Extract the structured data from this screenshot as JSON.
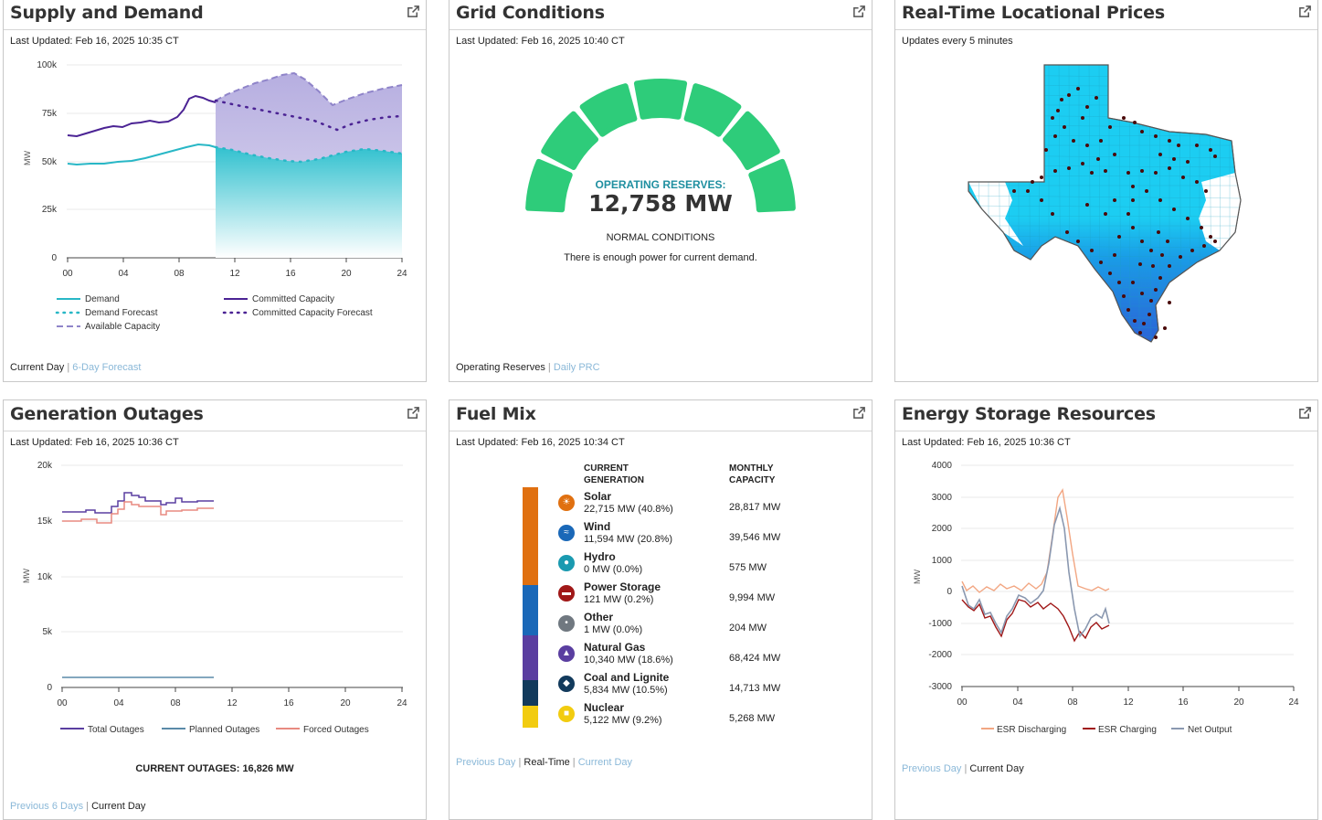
{
  "supply": {
    "title": "Supply and Demand",
    "updated": "Last Updated: Feb 16, 2025 10:35 CT",
    "y_label": "MW",
    "y_ticks": [
      "100k",
      "75k",
      "50k",
      "25k",
      "0"
    ],
    "x_ticks": [
      "00",
      "04",
      "08",
      "12",
      "16",
      "20",
      "24"
    ],
    "legend": {
      "demand": "Demand",
      "committed": "Committed Capacity",
      "demand_forecast": "Demand Forecast",
      "committed_forecast": "Committed Capacity Forecast",
      "available": "Available Capacity"
    },
    "footer_active": "Current Day",
    "footer_link": "6-Day Forecast"
  },
  "grid": {
    "title": "Grid Conditions",
    "updated": "Last Updated: Feb 16, 2025 10:40 CT",
    "reserves_label": "OPERATING RESERVES:",
    "reserves_value": "12,758 MW",
    "condition": "NORMAL CONDITIONS",
    "message": "There is enough power for current demand.",
    "footer_active": "Operating Reserves",
    "footer_link": "Daily PRC",
    "gauge_color": "#2ecc7a"
  },
  "prices": {
    "title": "Real-Time Locational Prices",
    "updated": "Updates every 5 minutes"
  },
  "outages": {
    "title": "Generation Outages",
    "updated": "Last Updated: Feb 16, 2025 10:36 CT",
    "y_label": "MW",
    "y_ticks": [
      "20k",
      "15k",
      "10k",
      "5k",
      "0"
    ],
    "x_ticks": [
      "00",
      "04",
      "08",
      "12",
      "16",
      "20",
      "24"
    ],
    "legend": {
      "total": "Total Outages",
      "planned": "Planned Outages",
      "forced": "Forced Outages"
    },
    "current": "CURRENT OUTAGES: 16,826 MW",
    "footer_link": "Previous 6 Days",
    "footer_active": "Current Day"
  },
  "fuel": {
    "title": "Fuel Mix",
    "updated": "Last Updated: Feb 16, 2025 10:34 CT",
    "col1": "CURRENT GENERATION",
    "col2": "MONTHLY CAPACITY",
    "rows": [
      {
        "name": "Solar",
        "gen": "22,715 MW (40.8%)",
        "cap": "28,817 MW",
        "color": "#e07010",
        "share": 40.8
      },
      {
        "name": "Wind",
        "gen": "11,594 MW (20.8%)",
        "cap": "39,546 MW",
        "color": "#1a68b8",
        "share": 20.8
      },
      {
        "name": "Hydro",
        "gen": "0 MW (0.0%)",
        "cap": "575 MW",
        "color": "#1a9ab0",
        "share": 0.0
      },
      {
        "name": "Power Storage",
        "gen": "121 MW (0.2%)",
        "cap": "9,994 MW",
        "color": "#a01818",
        "share": 0.2
      },
      {
        "name": "Other",
        "gen": "1 MW (0.0%)",
        "cap": "204 MW",
        "color": "#707880",
        "share": 0.0
      },
      {
        "name": "Natural Gas",
        "gen": "10,340 MW (18.6%)",
        "cap": "68,424 MW",
        "color": "#5a3ea0",
        "share": 18.6
      },
      {
        "name": "Coal and Lignite",
        "gen": "5,834 MW (10.5%)",
        "cap": "14,713 MW",
        "color": "#123a5c",
        "share": 10.5
      },
      {
        "name": "Nuclear",
        "gen": "5,122 MW (9.2%)",
        "cap": "5,268 MW",
        "color": "#f2cc10",
        "share": 9.2
      }
    ],
    "footer_link1": "Previous Day",
    "footer_active": "Real-Time",
    "footer_link2": "Current Day"
  },
  "storage": {
    "title": "Energy Storage Resources",
    "updated": "Last Updated: Feb 16, 2025 10:36 CT",
    "y_label": "MW",
    "y_ticks": [
      "4000",
      "3000",
      "2000",
      "1000",
      "0",
      "-1000",
      "-2000",
      "-3000"
    ],
    "x_ticks": [
      "00",
      "04",
      "08",
      "12",
      "16",
      "20",
      "24"
    ],
    "legend": {
      "discharging": "ESR Discharging",
      "charging": "ESR Charging",
      "net": "Net Output"
    },
    "footer_link": "Previous Day",
    "footer_active": "Current Day"
  }
}
